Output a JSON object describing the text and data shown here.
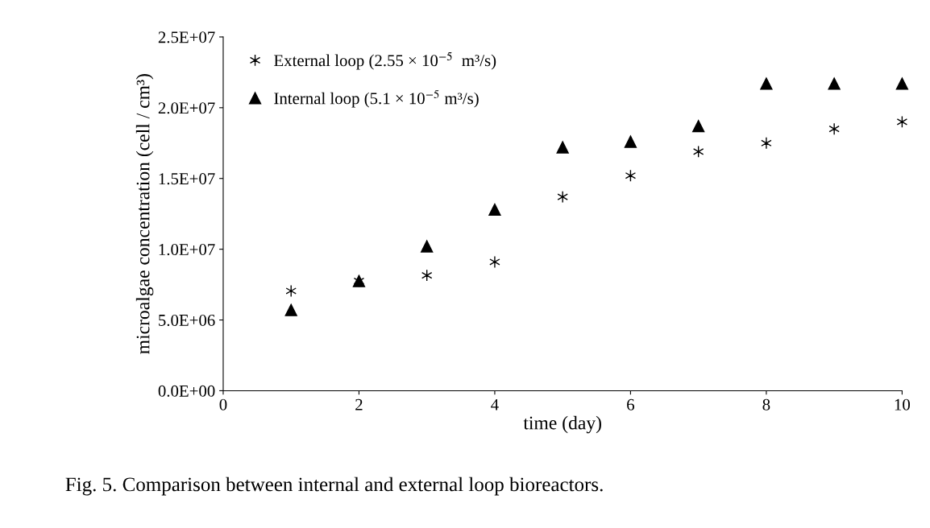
{
  "chart_data": {
    "type": "scatter",
    "xlabel": "time (day)",
    "ylabel": "microalgae concentration (cell / cm³)",
    "x": [
      1,
      2,
      3,
      4,
      5,
      6,
      7,
      8,
      9,
      10
    ],
    "series": [
      {
        "name": "External loop (2.55 × 10$^{−5}$  m³/s)",
        "color": "#000000",
        "marker": "cross",
        "values": [
          7050000.0,
          7750000.0,
          8150000.0,
          9100000.0,
          13700000.0,
          15200000.0,
          16900000.0,
          17500000.0,
          18500000.0,
          19000000.0
        ]
      },
      {
        "name": "Internal loop (5.1 × 10$^{−5}$ m³/s)",
        "color": "#000000",
        "marker": "triangle",
        "values": [
          5700000.0,
          7750000.0,
          10200000.0,
          12800000.0,
          17200000.0,
          17600000.0,
          18700000.0,
          21700000.0,
          21700000.0,
          21700000.0
        ]
      }
    ],
    "xlim": [
      0,
      10
    ],
    "xticks": [
      0,
      2,
      4,
      6,
      8,
      10
    ],
    "ylim": [
      0,
      25000000.0
    ],
    "yticks": [
      {
        "value": 0,
        "label": "0.0E+00"
      },
      {
        "value": 5000000.0,
        "label": "5.0E+06"
      },
      {
        "value": 10000000.0,
        "label": "1.0E+07"
      },
      {
        "value": 15000000.0,
        "label": "1.5E+07"
      },
      {
        "value": 20000000.0,
        "label": "2.0E+07"
      },
      {
        "value": 25000000.0,
        "label": "2.5E+07"
      }
    ],
    "grid": false,
    "legend": "top left",
    "annotations": [
      "Fig. 5. Comparison between internal and external loop bioreactors."
    ]
  }
}
